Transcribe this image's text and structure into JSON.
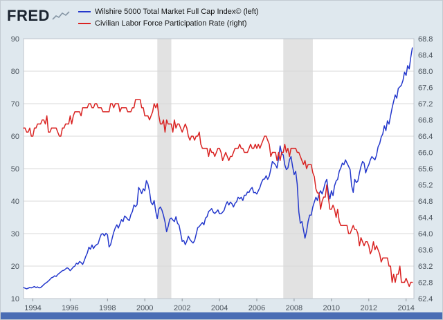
{
  "header": {
    "logo_text": "FRED"
  },
  "legend": {
    "items": [
      {
        "label": "Wilshire 5000 Total Market Full Cap Index© (left)",
        "color": "#2438cc"
      },
      {
        "label": "Civilian Labor Force Participation Rate (right)",
        "color": "#d92322"
      }
    ]
  },
  "colors": {
    "background": "#dfe8ee",
    "plot_background": "#ffffff",
    "grid": "#d8d8d8",
    "plot_border": "#bcc4cc",
    "recession_band": "#e2e2e2",
    "axis_text": "#49525b",
    "tick": "#8a9299",
    "footer_bar": "#4a6db4",
    "logo_text": "#1b2430",
    "logo_spark": "#8494a3"
  },
  "chart_data": {
    "type": "line",
    "title": "",
    "x_axis": {
      "min": 1994,
      "max": 2014.92,
      "data_start": 1994,
      "frequency": "monthly",
      "ticks": [
        1994,
        1996,
        1998,
        2000,
        2002,
        2004,
        2006,
        2008,
        2010,
        2012,
        2014
      ]
    },
    "left_axis": {
      "min": 10,
      "max": 90,
      "ticks": [
        10,
        20,
        30,
        40,
        50,
        60,
        70,
        80,
        90
      ]
    },
    "right_axis": {
      "min": 62.4,
      "max": 68.8,
      "ticks": [
        62.4,
        62.8,
        63.2,
        63.6,
        64.0,
        64.4,
        64.8,
        65.2,
        65.6,
        66.0,
        66.4,
        66.8,
        67.2,
        67.6,
        68.0,
        68.4,
        68.8
      ]
    },
    "recessions": [
      {
        "start": 2001.17,
        "end": 2001.92
      },
      {
        "start": 2007.92,
        "end": 2009.5
      }
    ],
    "series": [
      {
        "name": "Wilshire 5000 Total Market Full Cap Index© (left)",
        "axis": "left",
        "color": "#2438cc",
        "values": [
          13.4,
          13.2,
          13.0,
          13.2,
          13.4,
          13.3,
          13.5,
          13.7,
          13.4,
          13.6,
          13.3,
          13.4,
          13.8,
          14.3,
          14.7,
          15.0,
          15.4,
          15.9,
          16.4,
          16.6,
          17.0,
          16.8,
          17.4,
          17.8,
          18.2,
          18.6,
          18.7,
          19.1,
          19.5,
          19.2,
          18.6,
          19.1,
          19.7,
          20.0,
          20.9,
          20.6,
          21.4,
          21.1,
          20.5,
          21.6,
          23.0,
          24.0,
          25.8,
          25.2,
          26.5,
          25.4,
          26.2,
          26.6,
          26.9,
          28.6,
          29.8,
          30.0,
          29.3,
          30.1,
          29.6,
          25.9,
          26.6,
          28.6,
          30.4,
          31.8,
          32.7,
          31.7,
          33.0,
          34.3,
          33.7,
          35.4,
          35.0,
          34.4,
          34.0,
          35.8,
          36.8,
          38.8,
          38.3,
          38.9,
          44.2,
          43.4,
          42.3,
          43.8,
          43.2,
          46.3,
          45.3,
          43.0,
          39.6,
          38.9,
          40.2,
          36.8,
          34.6,
          37.6,
          38.2,
          37.2,
          35.6,
          33.6,
          30.6,
          32.2,
          34.4,
          34.8,
          34.2,
          33.7,
          35.2,
          33.2,
          32.6,
          30.2,
          27.6,
          27.9,
          26.6,
          27.7,
          29.2,
          28.2,
          27.6,
          27.1,
          27.8,
          29.8,
          31.8,
          32.2,
          32.8,
          33.4,
          32.7,
          34.8,
          35.2,
          36.8,
          37.2,
          37.7,
          36.6,
          36.2,
          36.7,
          37.3,
          36.1,
          36.1,
          36.6,
          37.2,
          38.8,
          39.8,
          38.8,
          39.7,
          39.2,
          38.2,
          39.3,
          39.8,
          41.2,
          40.7,
          41.2,
          40.2,
          41.8,
          41.8,
          42.8,
          42.7,
          43.7,
          44.2,
          42.6,
          42.7,
          42.2,
          43.2,
          44.2,
          45.7,
          46.7,
          46.8,
          47.8,
          46.7,
          47.7,
          49.8,
          52.2,
          51.7,
          51.2,
          50.2,
          53.2,
          57.0,
          54.7,
          54.2,
          51.2,
          49.7,
          50.2,
          52.7,
          53.7,
          50.7,
          48.2,
          49.2,
          45.2,
          36.7,
          33.2,
          33.7,
          31.2,
          28.6,
          30.7,
          33.7,
          35.7,
          35.7,
          38.2,
          39.7,
          41.2,
          40.2,
          42.2,
          43.2,
          42.2,
          43.7,
          45.7,
          46.7,
          42.7,
          40.7,
          43.2,
          41.7,
          44.7,
          46.2,
          46.7,
          49.2,
          50.2,
          51.7,
          51.2,
          52.7,
          51.7,
          50.7,
          49.7,
          44.7,
          42.7,
          46.7,
          45.7,
          46.2,
          48.7,
          50.7,
          52.2,
          51.7,
          48.7,
          50.2,
          51.2,
          52.7,
          53.7,
          53.2,
          52.7,
          54.2,
          56.7,
          57.7,
          59.7,
          60.7,
          63.2,
          61.7,
          64.7,
          63.7,
          66.2,
          68.7,
          70.7,
          72.7,
          71.7,
          74.7,
          75.2,
          75.7,
          77.2,
          79.7,
          78.7,
          81.7,
          80.7,
          84.2,
          87.2
        ]
      },
      {
        "name": "Civilian Labor Force Participation Rate (right)",
        "axis": "right",
        "color": "#d92322",
        "values": [
          66.6,
          66.6,
          66.5,
          66.5,
          66.6,
          66.4,
          66.4,
          66.6,
          66.6,
          66.7,
          66.7,
          66.7,
          66.8,
          66.8,
          66.7,
          66.9,
          66.5,
          66.5,
          66.6,
          66.6,
          66.6,
          66.6,
          66.5,
          66.4,
          66.4,
          66.6,
          66.6,
          66.7,
          66.7,
          66.7,
          66.9,
          66.7,
          66.9,
          67.0,
          67.0,
          67.0,
          67.0,
          66.9,
          67.1,
          67.1,
          67.1,
          67.1,
          67.2,
          67.2,
          67.1,
          67.1,
          67.2,
          67.2,
          67.1,
          67.1,
          67.1,
          67.0,
          67.0,
          67.0,
          67.0,
          67.0,
          67.2,
          67.2,
          67.1,
          67.2,
          67.2,
          67.2,
          67.0,
          67.1,
          67.1,
          67.1,
          67.1,
          67.0,
          67.0,
          67.0,
          67.1,
          67.1,
          67.3,
          67.3,
          67.3,
          67.3,
          67.1,
          67.1,
          66.9,
          66.9,
          66.9,
          66.8,
          66.9,
          67.0,
          67.2,
          67.1,
          67.2,
          66.9,
          66.7,
          66.7,
          66.8,
          66.5,
          66.8,
          66.7,
          66.7,
          66.7,
          66.5,
          66.8,
          66.6,
          66.7,
          66.7,
          66.6,
          66.5,
          66.6,
          66.7,
          66.6,
          66.4,
          66.3,
          66.4,
          66.4,
          66.3,
          66.4,
          66.4,
          66.5,
          66.2,
          66.1,
          66.1,
          66.1,
          66.1,
          65.9,
          66.1,
          66.0,
          66.0,
          65.9,
          66.0,
          66.1,
          66.1,
          66.0,
          65.8,
          65.9,
          66.0,
          65.9,
          65.8,
          65.9,
          65.9,
          66.0,
          66.1,
          66.1,
          66.1,
          66.2,
          66.1,
          66.1,
          66.0,
          66.0,
          66.0,
          66.1,
          66.2,
          66.1,
          66.1,
          66.2,
          66.1,
          66.2,
          66.1,
          66.2,
          66.3,
          66.4,
          66.4,
          66.3,
          66.2,
          65.9,
          66.0,
          66.0,
          66.0,
          65.8,
          66.0,
          65.8,
          66.0,
          66.0,
          66.2,
          66.0,
          66.1,
          65.9,
          66.1,
          66.1,
          66.1,
          66.1,
          66.0,
          66.0,
          65.9,
          65.8,
          65.7,
          65.8,
          65.6,
          65.7,
          65.7,
          65.7,
          65.5,
          65.4,
          65.1,
          65.0,
          65.0,
          64.6,
          64.8,
          64.9,
          64.9,
          65.2,
          64.9,
          64.6,
          64.6,
          64.7,
          64.6,
          64.4,
          64.6,
          64.3,
          64.2,
          64.2,
          64.2,
          64.2,
          64.2,
          64.0,
          64.0,
          64.1,
          64.2,
          64.1,
          64.1,
          64.0,
          63.7,
          63.9,
          63.8,
          63.7,
          63.8,
          63.8,
          63.7,
          63.5,
          63.6,
          63.8,
          63.6,
          63.7,
          63.6,
          63.5,
          63.3,
          63.4,
          63.4,
          63.4,
          63.4,
          63.2,
          63.2,
          62.8,
          63.0,
          62.8,
          63.0,
          63.0,
          63.2,
          62.8,
          62.8,
          62.8,
          62.9,
          62.8,
          62.7,
          62.8,
          62.8
        ]
      }
    ]
  }
}
